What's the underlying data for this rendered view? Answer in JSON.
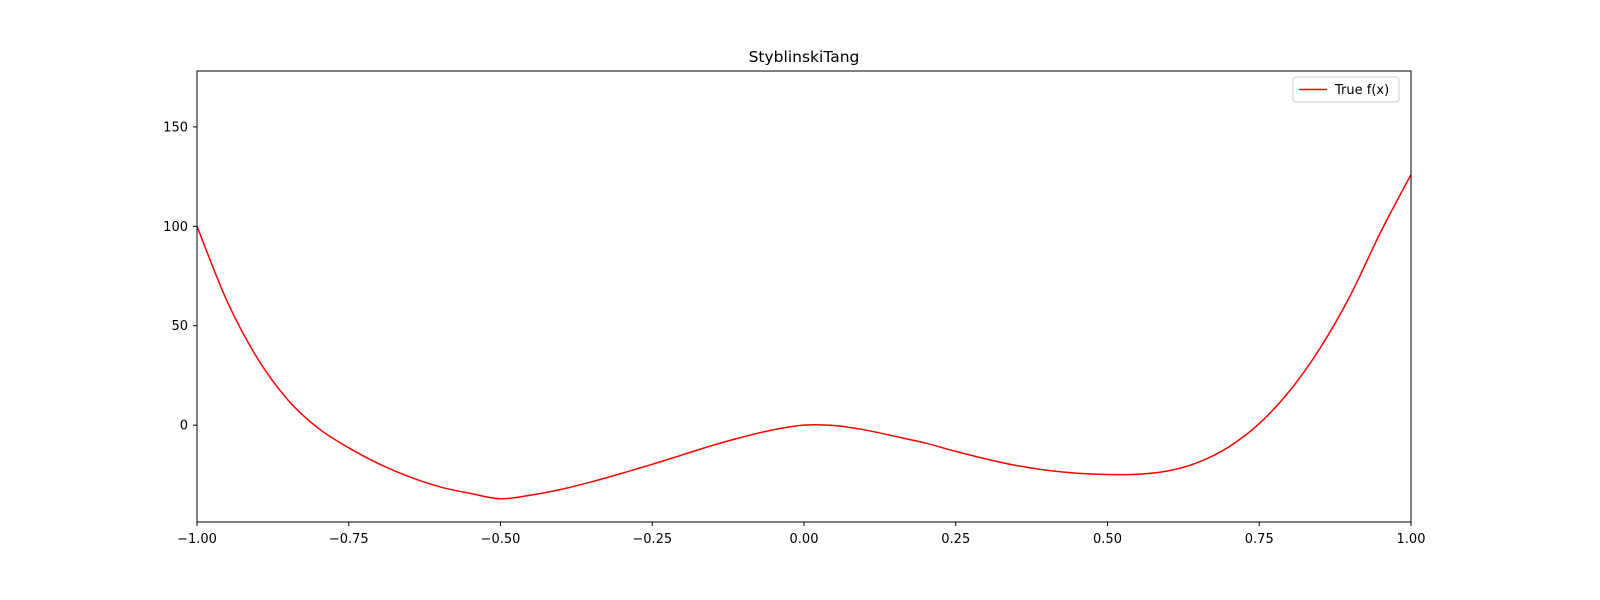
{
  "chart_data": {
    "type": "line",
    "title": "StyblinskiTang",
    "xlabel": "",
    "ylabel": "",
    "xlim": [
      -1.0,
      1.0
    ],
    "ylim": [
      -48.7,
      178.1
    ],
    "xticks": [
      -1.0,
      -0.75,
      -0.5,
      -0.25,
      0.0,
      0.25,
      0.5,
      0.75,
      1.0
    ],
    "xtick_labels": [
      "−1.00",
      "−0.75",
      "−0.50",
      "−0.25",
      "0.00",
      "0.25",
      "0.50",
      "0.75",
      "1.00"
    ],
    "yticks": [
      0,
      50,
      100,
      150
    ],
    "ytick_labels": [
      "0",
      "50",
      "100",
      "150"
    ],
    "grid": false,
    "legend_position": "top-right",
    "series": [
      {
        "name": "True f(x)",
        "color": "#ff0000",
        "x": [
          -1.0,
          -0.95,
          -0.9,
          -0.85,
          -0.8,
          -0.75,
          -0.7,
          -0.65,
          -0.6,
          -0.55,
          -0.5,
          -0.45,
          -0.4,
          -0.35,
          -0.3,
          -0.25,
          -0.2,
          -0.15,
          -0.1,
          -0.05,
          0.0,
          0.05,
          0.1,
          0.15,
          0.2,
          0.25,
          0.3,
          0.35,
          0.4,
          0.45,
          0.5,
          0.55,
          0.6,
          0.65,
          0.7,
          0.75,
          0.8,
          0.85,
          0.9,
          0.95,
          1.0
        ],
        "y": [
          100.0,
          62.0,
          33.4,
          12.6,
          -1.6,
          -11.4,
          -19.5,
          -26.0,
          -31.0,
          -34.3,
          -37.0,
          -35.2,
          -32.3,
          -28.5,
          -24.2,
          -19.7,
          -14.9,
          -10.1,
          -5.9,
          -2.3,
          0.0,
          -0.2,
          -2.4,
          -5.6,
          -9.0,
          -13.2,
          -17.0,
          -20.3,
          -22.7,
          -24.2,
          -24.8,
          -24.7,
          -23.0,
          -18.6,
          -10.9,
          0.8,
          17.2,
          38.6,
          65.2,
          97.1,
          126.0
        ]
      }
    ]
  }
}
